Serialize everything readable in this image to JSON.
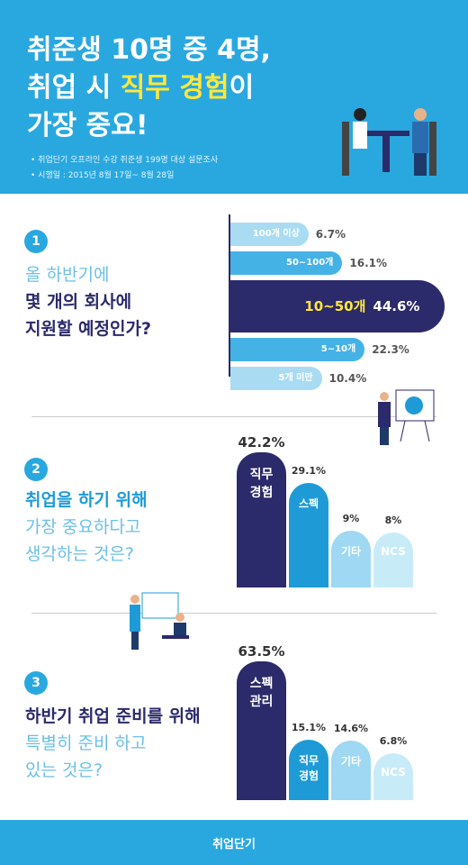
{
  "header": {
    "title_lines": [
      [
        "취준생 10명 중 4명,"
      ],
      [
        "취업 시 ",
        "직무 경험",
        "이"
      ],
      [
        "가장 중요!"
      ]
    ],
    "notes": [
      "취업단기 오프라인 수강 취준생 199명 대상 설문조사",
      "시행일 : 2015년 8월 17일~ 8월 28일"
    ]
  },
  "chart_data": [
    {
      "type": "hbar",
      "number": "1",
      "question": [
        "올 하반기에",
        "몇 개의 회사에",
        "지원할 예정인가?"
      ],
      "categories": [
        "100개 이상",
        "50~100개",
        "10~50개",
        "5~10개",
        "5개 미만"
      ],
      "values": [
        6.7,
        16.1,
        44.6,
        22.3,
        10.4
      ],
      "value_labels": [
        "6.7%",
        "16.1%",
        "44.6%",
        "22.3%",
        "10.4%"
      ],
      "colors": [
        "#a9dcf3",
        "#45b2e6",
        "#2b2a6a",
        "#45b2e6",
        "#a9dcf3"
      ],
      "highlight": 2
    },
    {
      "type": "column",
      "number": "2",
      "question": [
        "취업을 하기 위해",
        "가장 중요하다고",
        "생각하는 것은?"
      ],
      "categories": [
        "직무 경험",
        "스펙",
        "기타",
        "NCS"
      ],
      "values": [
        42.2,
        29.1,
        9,
        8
      ],
      "value_labels": [
        "42.2%",
        "29.1%",
        "9%",
        "8%"
      ],
      "colors": [
        "#2b2a6a",
        "#1e9bd7",
        "#9ed8f2",
        "#c8ebf8"
      ]
    },
    {
      "type": "column",
      "number": "3",
      "question": [
        "하반기 취업 준비를 위해",
        "특별히 준비 하고",
        "있는 것은?"
      ],
      "categories": [
        "스펙 관리",
        "직무 경험",
        "기타",
        "NCS"
      ],
      "values": [
        63.5,
        15.1,
        14.6,
        6.8
      ],
      "value_labels": [
        "63.5%",
        "15.1%",
        "14.6%",
        "6.8%"
      ],
      "colors": [
        "#2b2a6a",
        "#1e9bd7",
        "#9ed8f2",
        "#c8ebf8"
      ]
    }
  ],
  "footer": {
    "brand": "취업단기"
  }
}
